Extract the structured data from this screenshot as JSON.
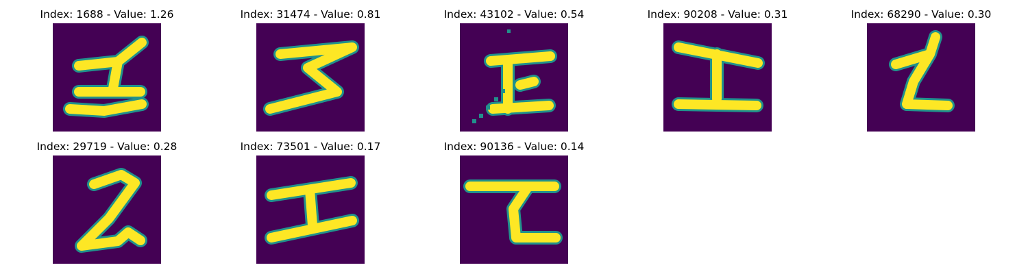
{
  "panels": [
    {
      "title": "Index: 1688 - Value: 1.26",
      "glyph": "1-bar",
      "colors": {
        "background": "#440154",
        "ink": "#fde725",
        "edge": "#21918c"
      }
    },
    {
      "title": "Index: 31474 - Value: 0.81",
      "glyph": "z-shape",
      "colors": {
        "background": "#440154",
        "ink": "#fde725",
        "edge": "#21918c"
      }
    },
    {
      "title": "Index: 43102 - Value: 0.54",
      "glyph": "noisy-E",
      "colors": {
        "background": "#440154",
        "ink": "#fde725",
        "edge": "#21918c"
      }
    },
    {
      "title": "Index: 90208 - Value: 0.31",
      "glyph": "I-beam",
      "colors": {
        "background": "#440154",
        "ink": "#fde725",
        "edge": "#21918c"
      }
    },
    {
      "title": "Index: 68290 - Value: 0.30",
      "glyph": "L-curve",
      "colors": {
        "background": "#440154",
        "ink": "#fde725",
        "edge": "#21918c"
      }
    },
    {
      "title": "Index: 29719 - Value: 0.28",
      "glyph": "2-shape",
      "colors": {
        "background": "#440154",
        "ink": "#fde725",
        "edge": "#21918c"
      }
    },
    {
      "title": "Index: 73501 - Value: 0.17",
      "glyph": "I-beam-slanted",
      "colors": {
        "background": "#440154",
        "ink": "#fde725",
        "edge": "#21918c"
      }
    },
    {
      "title": "Index: 90136 - Value: 0.14",
      "glyph": "C-hook",
      "colors": {
        "background": "#440154",
        "ink": "#fde725",
        "edge": "#21918c"
      }
    }
  ]
}
